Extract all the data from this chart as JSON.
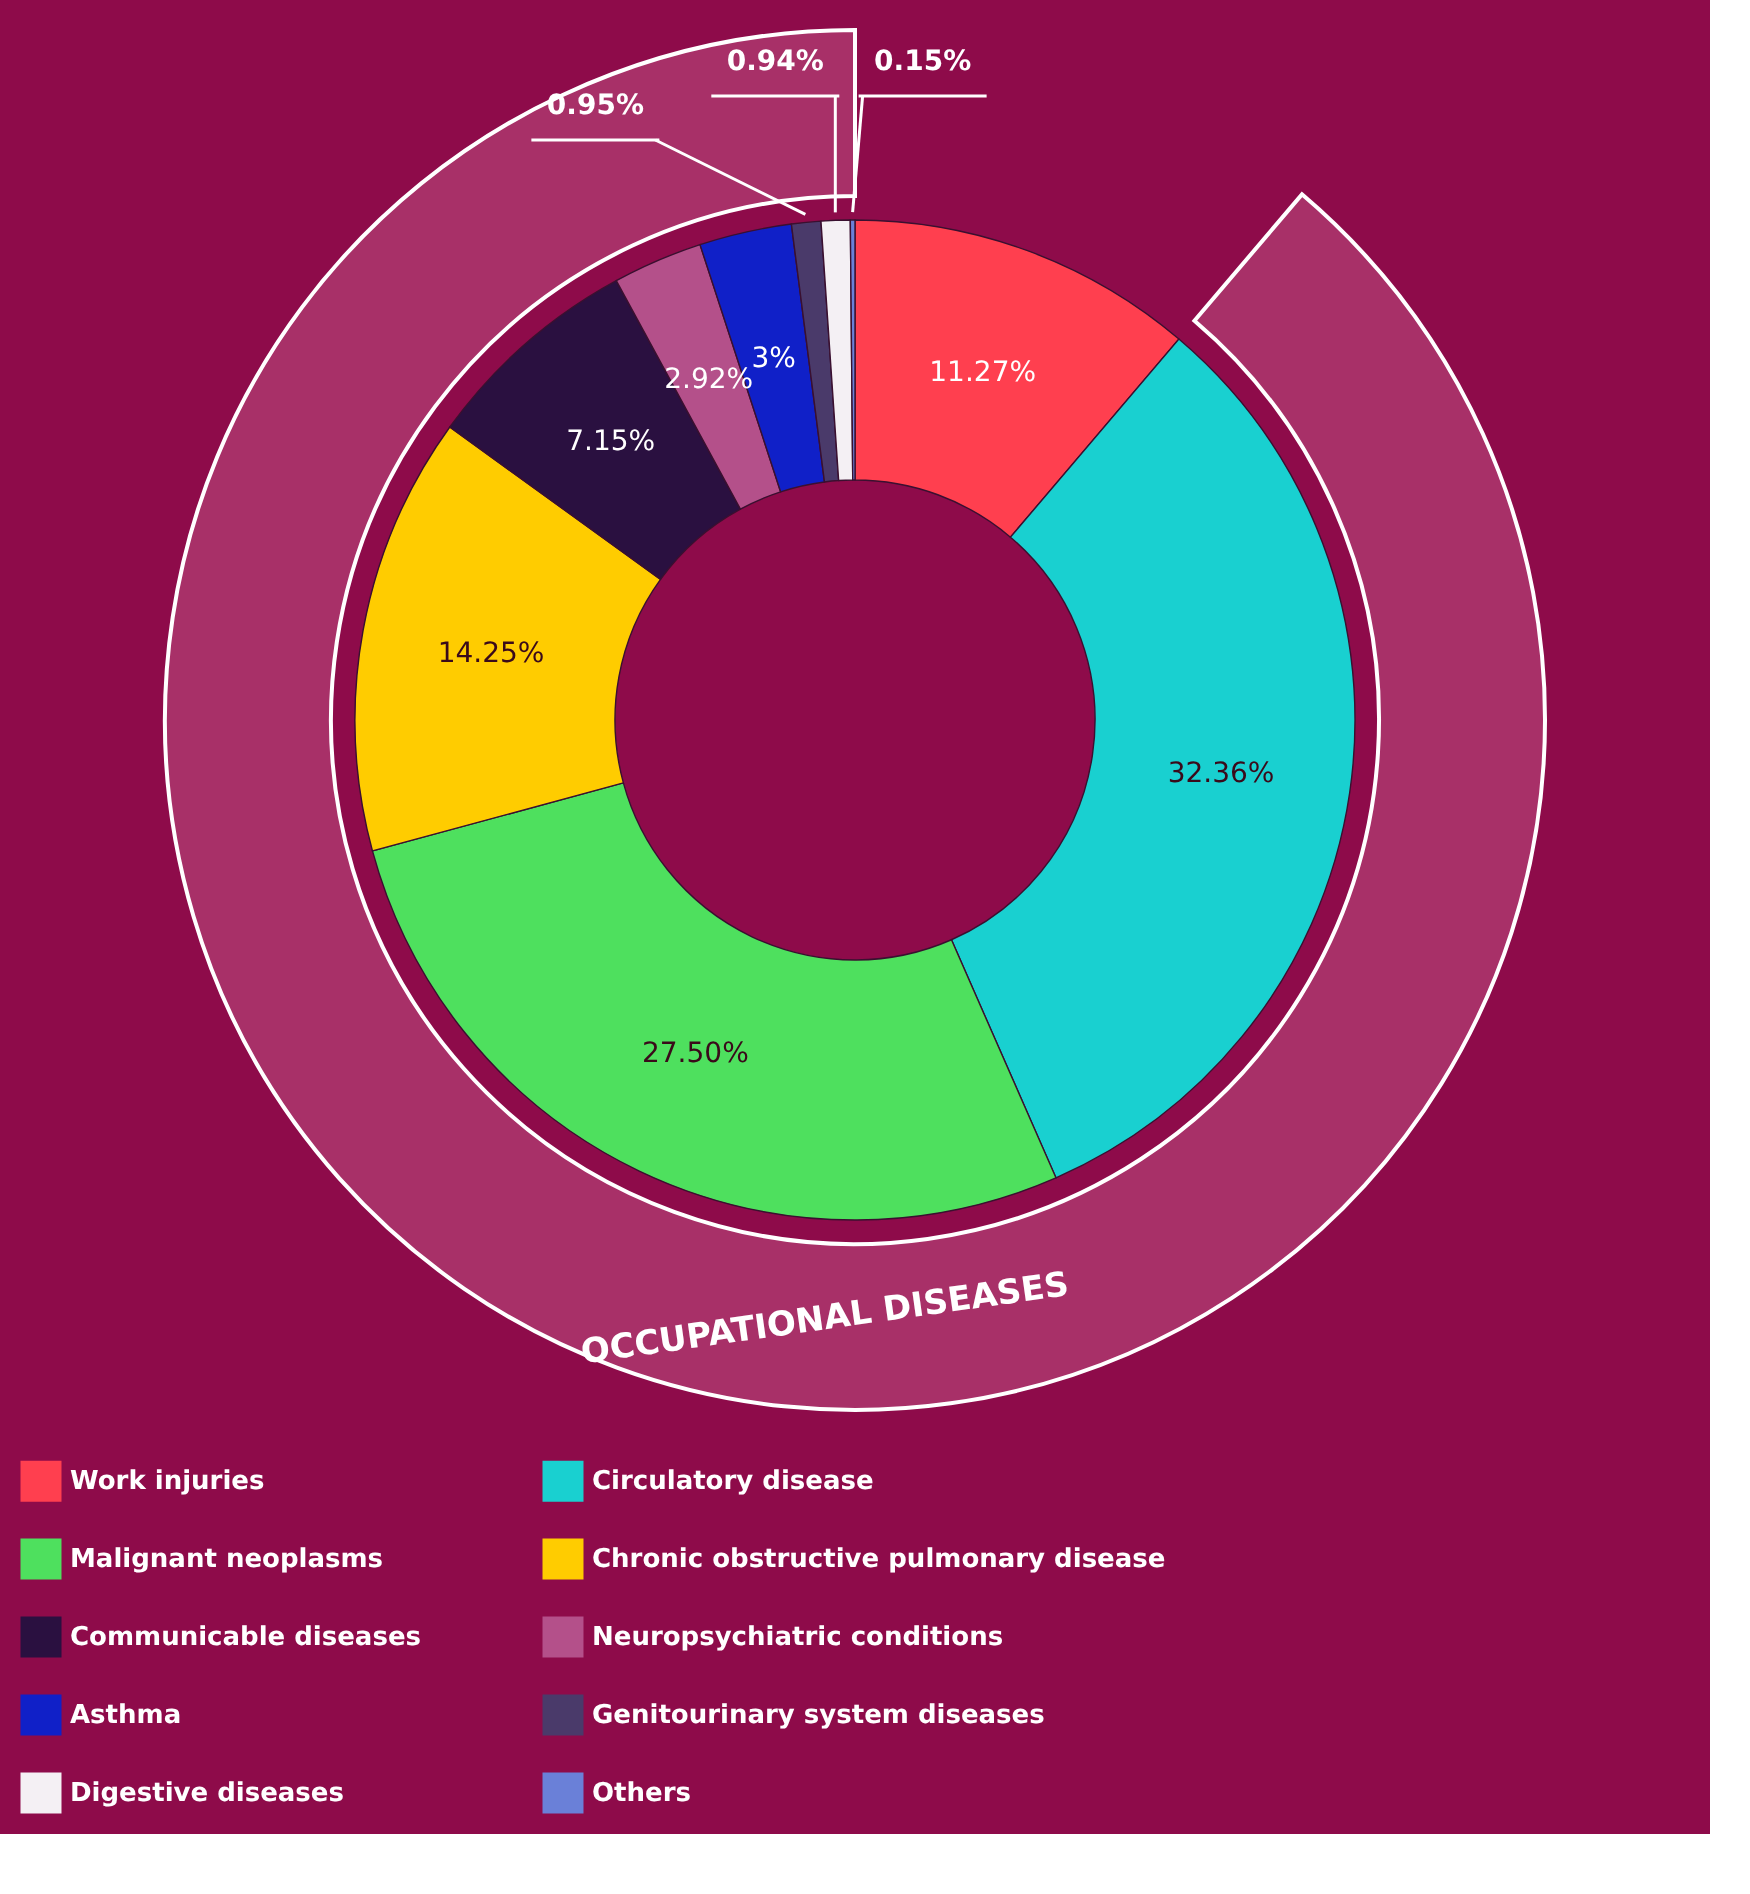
{
  "chart_data": {
    "type": "donut",
    "categories": [
      "Work injuries",
      "Circulatory disease",
      "Malignant neoplasms",
      "Chronic obstructive pulmonary disease",
      "Communicable diseases",
      "Neuropsychiatric conditions",
      "Asthma",
      "Genitourinary system diseases",
      "Digestive diseases",
      "Others"
    ],
    "values": [
      11.27,
      32.36,
      27.5,
      14.25,
      7.15,
      2.92,
      3,
      0.95,
      0.94,
      0.15
    ],
    "value_labels": [
      "11.27%",
      "32.36%",
      "27.50%",
      "14.25%",
      "7.15%",
      "2.92%",
      "3%",
      "0.95%",
      "0.94%",
      "0.15%"
    ],
    "colors": [
      "#ff3f4f",
      "#19d0d0",
      "#4ee05e",
      "#ffcc00",
      "#2a1040",
      "#b4508a",
      "#1020c8",
      "#4a3a6a",
      "#f4f0f4",
      "#6a80d8"
    ],
    "annotations": [
      "OCCUPATIONAL DISEASES"
    ],
    "legend": "bottom"
  }
}
